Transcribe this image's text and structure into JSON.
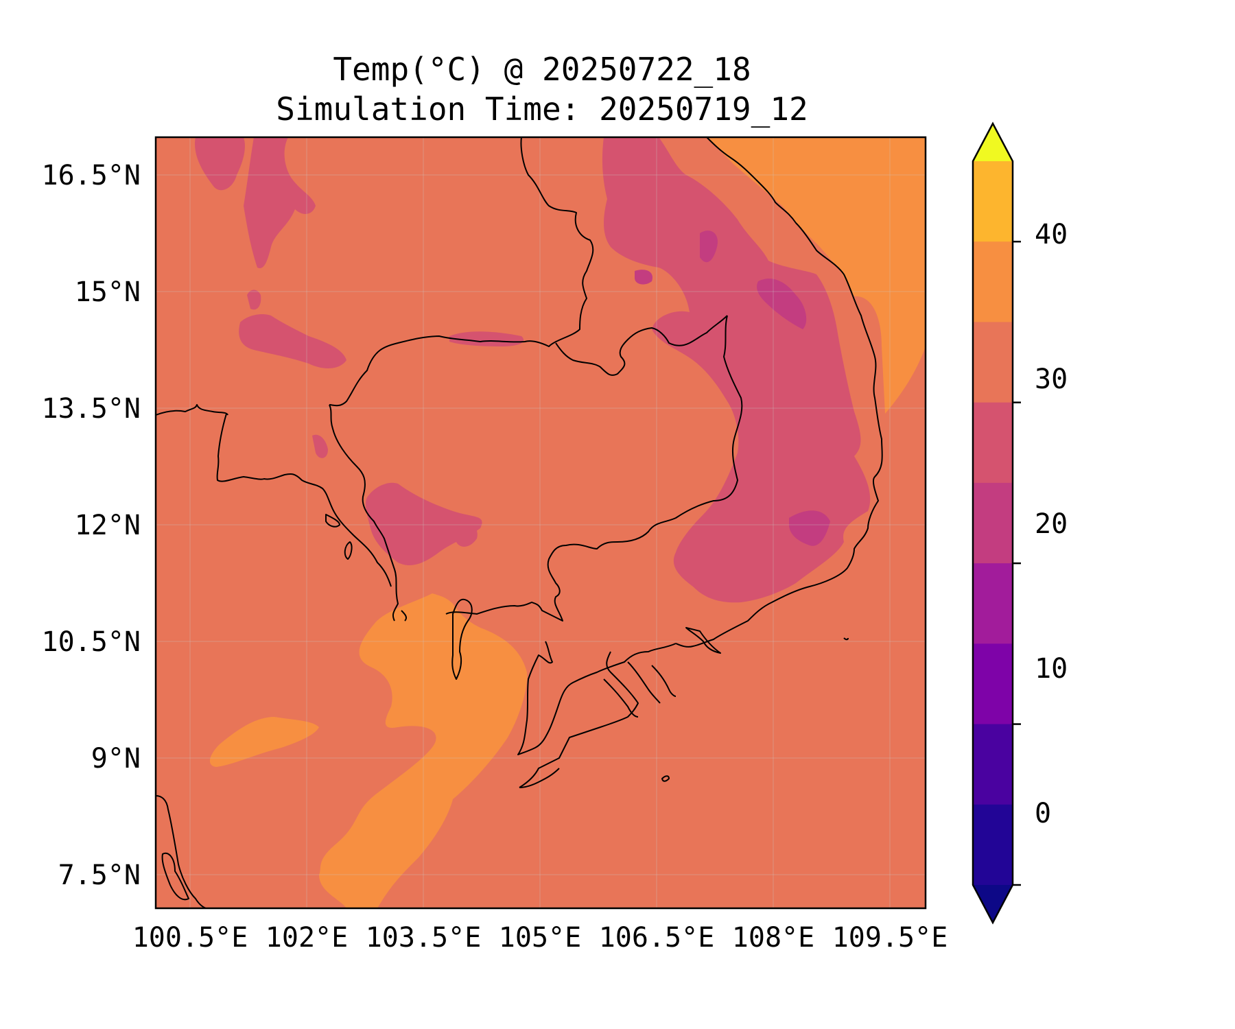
{
  "title": "Temp(°C) @ 20250722_18",
  "subtitle": "Simulation Time: 20250719_12",
  "map": {
    "lat_ticks": [
      "16.5°N",
      "15°N",
      "13.5°N",
      "12°N",
      "10.5°N",
      "9°N",
      "7.5°N"
    ],
    "lon_ticks": [
      "100.5°E",
      "102°E",
      "103.5°E",
      "105°E",
      "106.5°E",
      "108°E",
      "109.5°E"
    ],
    "background_class_color": "#e87558"
  },
  "colorbar": {
    "tick_labels": [
      "40",
      "30",
      "20",
      "10",
      "0"
    ],
    "levels": [
      -5,
      0,
      5,
      10,
      15,
      20,
      25,
      30,
      35,
      40,
      45
    ],
    "colors": [
      "#0d0887",
      "#220596",
      "#4a02a0",
      "#7e03a8",
      "#a21c9b",
      "#c33d80",
      "#d5536f",
      "#e87558",
      "#f78f41",
      "#fdb52e",
      "#f0f921"
    ],
    "extend": "both",
    "colormap": "plasma"
  }
}
